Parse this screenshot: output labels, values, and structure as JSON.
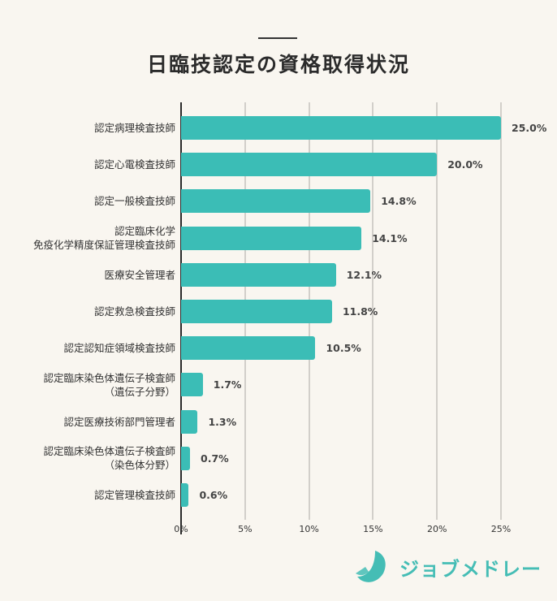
{
  "title": "日臨技認定の資格取得状況",
  "chart_data": {
    "type": "bar",
    "orientation": "horizontal",
    "title": "日臨技認定の資格取得状況",
    "xlabel": "",
    "ylabel": "",
    "xlim": [
      0,
      25
    ],
    "grid": true,
    "x_ticks": [
      "0%",
      "5%",
      "10%",
      "15%",
      "20%",
      "25%"
    ],
    "categories": [
      [
        "認定病理検査技師"
      ],
      [
        "認定心電検査技師"
      ],
      [
        "認定一般検査技師"
      ],
      [
        "認定臨床化学",
        "免疫化学精度保証管理検査技師"
      ],
      [
        "医療安全管理者"
      ],
      [
        "認定救急検査技師"
      ],
      [
        "認定認知症領域検査技師"
      ],
      [
        "認定臨床染色体遺伝子検査師",
        "（遺伝子分野）"
      ],
      [
        "認定医療技術部門管理者"
      ],
      [
        "認定臨床染色体遺伝子検査師",
        "（染色体分野）"
      ],
      [
        "認定管理検査技師"
      ]
    ],
    "values": [
      25.0,
      20.0,
      14.8,
      14.1,
      12.1,
      11.8,
      10.5,
      1.7,
      1.3,
      0.7,
      0.6
    ],
    "value_labels": [
      "25.0%",
      "20.0%",
      "14.8%",
      "14.1%",
      "12.1%",
      "11.8%",
      "10.5%",
      "1.7%",
      "1.3%",
      "0.7%",
      "0.6%"
    ],
    "bar_color": "#3bbdb6"
  },
  "brand": {
    "name": "ジョブメドレー",
    "color": "#45bdb5"
  }
}
